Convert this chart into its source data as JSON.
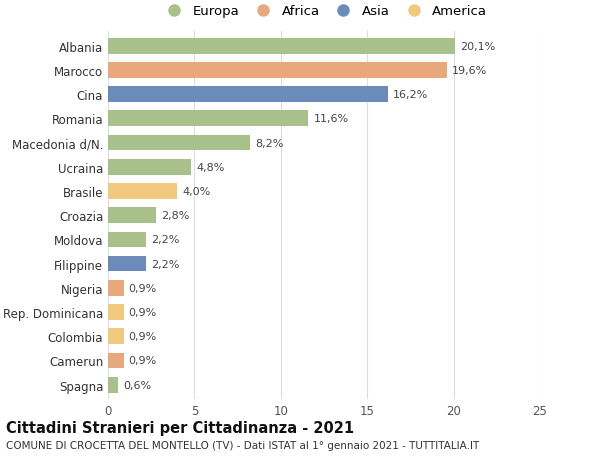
{
  "categories": [
    "Albania",
    "Marocco",
    "Cina",
    "Romania",
    "Macedonia d/N.",
    "Ucraina",
    "Brasile",
    "Croazia",
    "Moldova",
    "Filippine",
    "Nigeria",
    "Rep. Dominicana",
    "Colombia",
    "Camerun",
    "Spagna"
  ],
  "values": [
    20.1,
    19.6,
    16.2,
    11.6,
    8.2,
    4.8,
    4.0,
    2.8,
    2.2,
    2.2,
    0.9,
    0.9,
    0.9,
    0.9,
    0.6
  ],
  "labels": [
    "20,1%",
    "19,6%",
    "16,2%",
    "11,6%",
    "8,2%",
    "4,8%",
    "4,0%",
    "2,8%",
    "2,2%",
    "2,2%",
    "0,9%",
    "0,9%",
    "0,9%",
    "0,9%",
    "0,6%"
  ],
  "continents": [
    "Europa",
    "Africa",
    "Asia",
    "Europa",
    "Europa",
    "Europa",
    "America",
    "Europa",
    "Europa",
    "Asia",
    "Africa",
    "America",
    "America",
    "Africa",
    "Europa"
  ],
  "continent_colors": {
    "Europa": "#a8c08a",
    "Africa": "#e8a87c",
    "Asia": "#6b8cba",
    "America": "#f0c97e"
  },
  "legend_order": [
    "Europa",
    "Africa",
    "Asia",
    "America"
  ],
  "title": "Cittadini Stranieri per Cittadinanza - 2021",
  "subtitle": "COMUNE DI CROCETTA DEL MONTELLO (TV) - Dati ISTAT al 1° gennaio 2021 - TUTTITALIA.IT",
  "xlim": [
    0,
    25
  ],
  "xticks": [
    0,
    5,
    10,
    15,
    20,
    25
  ],
  "background_color": "#ffffff",
  "grid_color": "#dddddd",
  "bar_height": 0.65,
  "label_fontsize": 8.0,
  "title_fontsize": 10.5,
  "subtitle_fontsize": 7.5,
  "tick_fontsize": 8.5,
  "legend_fontsize": 9.5
}
